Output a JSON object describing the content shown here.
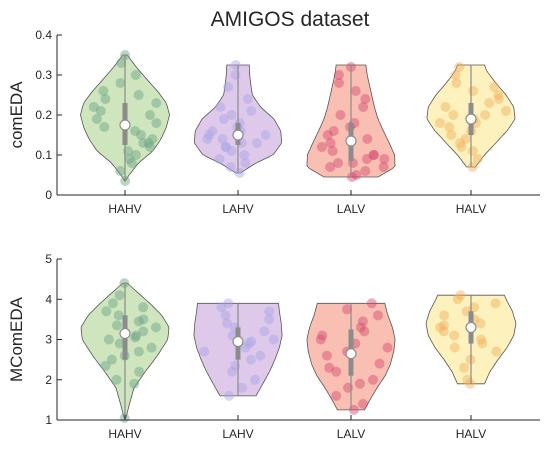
{
  "title": "AMIGOS dataset",
  "colors": {
    "HAHV": "#a6cf86",
    "LAHV": "#c49dd8",
    "LALV": "#f48a72",
    "HALV": "#fbe788",
    "points": {
      "HAHV": "#6a9f84",
      "LAHV": "#a7a3e6",
      "LALV": "#d3476f",
      "HALV": "#f0ae5a"
    },
    "median": "#ffffff",
    "box": "#8c8c8c",
    "outline": "#555555",
    "axis": "#262626"
  },
  "chart_data": [
    {
      "type": "violin",
      "title": "AMIGOS dataset",
      "ylabel": "comEDA",
      "xlabel": "",
      "categories": [
        "HAHV",
        "LAHV",
        "LALV",
        "HALV"
      ],
      "ylim": [
        0,
        0.4
      ],
      "yticks": [
        0,
        0.1,
        0.2,
        0.3,
        0.4
      ],
      "ytick_labels": [
        "0",
        "0.1",
        "0.2",
        "0.3",
        "0.4"
      ],
      "grid": false,
      "series": [
        {
          "category": "HAHV",
          "min": 0.035,
          "max": 0.35,
          "q1": 0.125,
          "median": 0.175,
          "q3": 0.23,
          "profile": [
            [
              0.035,
              0.01
            ],
            [
              0.05,
              0.09
            ],
            [
              0.08,
              0.3
            ],
            [
              0.11,
              0.62
            ],
            [
              0.14,
              0.8
            ],
            [
              0.17,
              0.92
            ],
            [
              0.2,
              0.99
            ],
            [
              0.23,
              0.92
            ],
            [
              0.26,
              0.72
            ],
            [
              0.29,
              0.48
            ],
            [
              0.32,
              0.25
            ],
            [
              0.35,
              0.05
            ]
          ],
          "points": [
            0.035,
            0.06,
            0.08,
            0.09,
            0.1,
            0.11,
            0.12,
            0.13,
            0.13,
            0.14,
            0.15,
            0.16,
            0.17,
            0.18,
            0.19,
            0.2,
            0.21,
            0.22,
            0.23,
            0.24,
            0.25,
            0.26,
            0.28,
            0.3,
            0.33,
            0.35
          ]
        },
        {
          "category": "LAHV",
          "min": 0.055,
          "max": 0.325,
          "q1": 0.125,
          "median": 0.15,
          "q3": 0.18,
          "profile": [
            [
              0.055,
              0.05
            ],
            [
              0.08,
              0.4
            ],
            [
              0.1,
              0.78
            ],
            [
              0.13,
              0.97
            ],
            [
              0.16,
              0.95
            ],
            [
              0.19,
              0.8
            ],
            [
              0.22,
              0.5
            ],
            [
              0.25,
              0.32
            ],
            [
              0.28,
              0.28
            ],
            [
              0.3,
              0.26
            ],
            [
              0.325,
              0.25
            ]
          ],
          "points": [
            0.055,
            0.07,
            0.08,
            0.09,
            0.1,
            0.11,
            0.12,
            0.12,
            0.13,
            0.13,
            0.14,
            0.14,
            0.15,
            0.15,
            0.16,
            0.16,
            0.17,
            0.18,
            0.19,
            0.2,
            0.21,
            0.22,
            0.24,
            0.27,
            0.3,
            0.325
          ]
        },
        {
          "category": "LALV",
          "min": 0.045,
          "max": 0.325,
          "q1": 0.085,
          "median": 0.135,
          "q3": 0.18,
          "profile": [
            [
              0.045,
              0.6
            ],
            [
              0.07,
              0.98
            ],
            [
              0.1,
              0.97
            ],
            [
              0.13,
              0.85
            ],
            [
              0.16,
              0.72
            ],
            [
              0.19,
              0.6
            ],
            [
              0.22,
              0.52
            ],
            [
              0.25,
              0.46
            ],
            [
              0.28,
              0.4
            ],
            [
              0.3,
              0.36
            ],
            [
              0.325,
              0.33
            ]
          ],
          "points": [
            0.045,
            0.05,
            0.06,
            0.07,
            0.07,
            0.08,
            0.08,
            0.09,
            0.09,
            0.1,
            0.1,
            0.11,
            0.12,
            0.13,
            0.14,
            0.15,
            0.16,
            0.17,
            0.18,
            0.2,
            0.22,
            0.24,
            0.26,
            0.28,
            0.3,
            0.32
          ]
        },
        {
          "category": "HALV",
          "min": 0.07,
          "max": 0.325,
          "q1": 0.15,
          "median": 0.19,
          "q3": 0.23,
          "profile": [
            [
              0.07,
              0.1
            ],
            [
              0.1,
              0.3
            ],
            [
              0.13,
              0.55
            ],
            [
              0.16,
              0.8
            ],
            [
              0.19,
              0.98
            ],
            [
              0.22,
              0.95
            ],
            [
              0.25,
              0.78
            ],
            [
              0.28,
              0.55
            ],
            [
              0.31,
              0.35
            ],
            [
              0.325,
              0.3
            ]
          ],
          "points": [
            0.07,
            0.09,
            0.11,
            0.12,
            0.13,
            0.14,
            0.15,
            0.16,
            0.17,
            0.18,
            0.18,
            0.19,
            0.2,
            0.2,
            0.21,
            0.22,
            0.23,
            0.24,
            0.25,
            0.26,
            0.27,
            0.28,
            0.3,
            0.32
          ]
        }
      ]
    },
    {
      "type": "violin",
      "title": "",
      "ylabel": "MComEDA",
      "xlabel": "",
      "categories": [
        "HAHV",
        "LAHV",
        "LALV",
        "HALV"
      ],
      "ylim": [
        1,
        5
      ],
      "yticks": [
        1,
        2,
        3,
        4,
        5
      ],
      "ytick_labels": [
        "1",
        "2",
        "3",
        "4",
        "5"
      ],
      "grid": false,
      "series": [
        {
          "category": "HAHV",
          "min": 1.05,
          "max": 4.4,
          "q1": 2.5,
          "median": 3.15,
          "q3": 3.6,
          "profile": [
            [
              1.05,
              0.02
            ],
            [
              1.4,
              0.1
            ],
            [
              1.8,
              0.2
            ],
            [
              2.2,
              0.45
            ],
            [
              2.6,
              0.72
            ],
            [
              3.0,
              0.95
            ],
            [
              3.3,
              0.98
            ],
            [
              3.6,
              0.82
            ],
            [
              3.9,
              0.55
            ],
            [
              4.2,
              0.25
            ],
            [
              4.4,
              0.05
            ]
          ],
          "points": [
            1.05,
            1.9,
            2.0,
            2.2,
            2.35,
            2.5,
            2.6,
            2.7,
            2.8,
            2.9,
            3.0,
            3.05,
            3.1,
            3.2,
            3.3,
            3.35,
            3.45,
            3.5,
            3.6,
            3.7,
            3.8,
            3.9,
            4.1,
            4.4
          ]
        },
        {
          "category": "LAHV",
          "min": 1.6,
          "max": 3.9,
          "q1": 2.5,
          "median": 2.95,
          "q3": 3.3,
          "profile": [
            [
              1.6,
              0.4
            ],
            [
              1.9,
              0.55
            ],
            [
              2.2,
              0.7
            ],
            [
              2.5,
              0.82
            ],
            [
              2.8,
              0.92
            ],
            [
              3.1,
              0.98
            ],
            [
              3.4,
              0.96
            ],
            [
              3.7,
              0.92
            ],
            [
              3.9,
              0.9
            ]
          ],
          "points": [
            1.6,
            1.8,
            2.0,
            2.2,
            2.35,
            2.5,
            2.6,
            2.7,
            2.8,
            2.9,
            2.95,
            3.0,
            3.1,
            3.2,
            3.3,
            3.4,
            3.5,
            3.6,
            3.7,
            3.8,
            3.9
          ]
        },
        {
          "category": "LALV",
          "min": 1.25,
          "max": 3.9,
          "q1": 2.1,
          "median": 2.65,
          "q3": 3.25,
          "profile": [
            [
              1.25,
              0.3
            ],
            [
              1.5,
              0.42
            ],
            [
              1.8,
              0.58
            ],
            [
              2.1,
              0.76
            ],
            [
              2.4,
              0.88
            ],
            [
              2.7,
              0.95
            ],
            [
              3.0,
              0.98
            ],
            [
              3.3,
              0.92
            ],
            [
              3.6,
              0.82
            ],
            [
              3.9,
              0.75
            ]
          ],
          "points": [
            1.25,
            1.4,
            1.6,
            1.8,
            1.9,
            2.0,
            2.2,
            2.3,
            2.4,
            2.6,
            2.7,
            2.8,
            2.9,
            3.0,
            3.1,
            3.2,
            3.3,
            3.45,
            3.6,
            3.75,
            3.9
          ]
        },
        {
          "category": "HALV",
          "min": 1.9,
          "max": 4.1,
          "q1": 2.9,
          "median": 3.3,
          "q3": 3.7,
          "profile": [
            [
              1.9,
              0.3
            ],
            [
              2.2,
              0.42
            ],
            [
              2.5,
              0.6
            ],
            [
              2.8,
              0.8
            ],
            [
              3.1,
              0.95
            ],
            [
              3.4,
              1.0
            ],
            [
              3.7,
              0.92
            ],
            [
              4.0,
              0.78
            ],
            [
              4.1,
              0.74
            ]
          ],
          "points": [
            1.9,
            2.0,
            2.3,
            2.5,
            2.7,
            2.8,
            2.9,
            3.0,
            3.1,
            3.2,
            3.3,
            3.35,
            3.4,
            3.5,
            3.6,
            3.7,
            3.8,
            3.9,
            4.0,
            4.1
          ]
        }
      ]
    }
  ]
}
